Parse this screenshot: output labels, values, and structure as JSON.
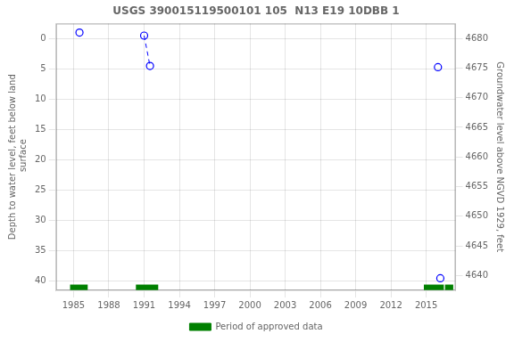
{
  "chart_data": {
    "type": "scatter",
    "title": "USGS 390015119500101 105  N13 E19 10DBB 1",
    "ylabel": "Depth to water level, feet below land\n surface",
    "y2label": "Groundwater level above NGVD 1929, feet",
    "xlim": [
      1983.5,
      2017.5
    ],
    "xticks": [
      1985,
      1988,
      1991,
      1994,
      1997,
      2000,
      2003,
      2006,
      2009,
      2012,
      2015
    ],
    "ylim": [
      41.5,
      -2.5
    ],
    "yticks": [
      0,
      5,
      10,
      15,
      20,
      25,
      30,
      35,
      40
    ],
    "y2lim": [
      4637.5,
      4682.5
    ],
    "y2ticks": [
      4640,
      4645,
      4650,
      4655,
      4660,
      4665,
      4670,
      4675,
      4680
    ],
    "grid": true,
    "legend": "bottom",
    "series": [
      {
        "type": "scatter",
        "color": "blue",
        "marker": "circle",
        "x": [
          1985.5,
          1991.0,
          1991.5,
          2016.0,
          2016.2
        ],
        "values": [
          -1.0,
          -0.5,
          4.5,
          4.7,
          39.5
        ]
      },
      {
        "type": "line",
        "color": "blue",
        "line_style": "dashed",
        "x": [
          1991.0,
          1991.5
        ],
        "values": [
          -0.5,
          4.5
        ]
      },
      {
        "type": "bar",
        "name": "Period of approved data",
        "color": "#008000",
        "x_start": [
          1984.7,
          1990.3,
          2014.8,
          2016.6
        ],
        "x_end": [
          1986.2,
          1992.2,
          2016.5,
          2017.3
        ],
        "y": 41.0,
        "height": 0.9
      }
    ]
  }
}
